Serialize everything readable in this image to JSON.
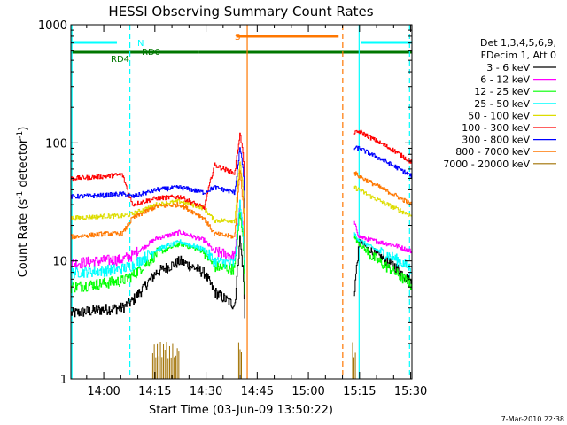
{
  "chart_data": {
    "type": "line",
    "title": "HESSI Observing Summary Count Rates",
    "xlabel": "Start Time (03-Jun-09 13:50:22)",
    "ylabel": "Count Rate (s",
    "ylabel_sup1": "-1",
    "ylabel_mid": " detector",
    "ylabel_sup2": "-1",
    "ylabel_end": ")",
    "y_scale": "log",
    "ylim": [
      1,
      1000
    ],
    "xlim_minutes": [
      0,
      100
    ],
    "x_ticks": [
      {
        "t": 9.63,
        "label": "14:00"
      },
      {
        "t": 24.63,
        "label": "14:15"
      },
      {
        "t": 39.63,
        "label": "14:30"
      },
      {
        "t": 54.63,
        "label": "14:45"
      },
      {
        "t": 69.63,
        "label": "15:00"
      },
      {
        "t": 84.63,
        "label": "15:15"
      },
      {
        "t": 99.63,
        "label": "15:30"
      }
    ],
    "y_ticks": [
      {
        "v": 1,
        "label": "1"
      },
      {
        "v": 10,
        "label": "10"
      },
      {
        "v": 100,
        "label": "100"
      },
      {
        "v": 1000,
        "label": "1000"
      }
    ],
    "legend_header": [
      "Det 1,3,4,5,6,9,",
      "FDecim 1, Att 0"
    ],
    "legend_position": "right",
    "timestamp": "7-Mar-2010 22:38",
    "flags": [
      {
        "label": "N",
        "color": "#00ffff",
        "segments": [
          [
            0,
            13.5
          ],
          [
            85,
            100
          ]
        ]
      },
      {
        "label": "RD0",
        "color": "#007700",
        "segments": [
          [
            14.5,
            37.5
          ],
          [
            37.5,
            100
          ]
        ]
      },
      {
        "label": "RD4",
        "color": "#007700",
        "segments": [
          [
            0,
            15.5
          ]
        ]
      },
      {
        "label": "S",
        "color": "#ff7700",
        "segments": [
          [
            48.5,
            78.5
          ]
        ]
      }
    ],
    "vertical_markers": [
      {
        "t": 0.3,
        "color": "#00ffff",
        "style": "solid"
      },
      {
        "t": 17.3,
        "color": "#00ffff",
        "style": "dashed"
      },
      {
        "t": 51.7,
        "color": "#ff7700",
        "style": "solid"
      },
      {
        "t": 79.7,
        "color": "#ff7700",
        "style": "dashed"
      },
      {
        "t": 84.5,
        "color": "#00ffff",
        "style": "solid"
      },
      {
        "t": 99.3,
        "color": "#00ffff",
        "style": "dashed"
      }
    ],
    "series": [
      {
        "name": "3 - 6 keV",
        "color": "#000000",
        "points": [
          [
            0,
            3.6
          ],
          [
            10,
            3.9
          ],
          [
            15,
            4.0
          ],
          [
            18,
            4.6
          ],
          [
            25,
            8.0
          ],
          [
            32,
            10.0
          ],
          [
            39,
            8.0
          ],
          [
            42,
            5.5
          ],
          [
            48,
            4.2
          ],
          [
            49.5,
            16
          ],
          [
            50.5,
            8
          ],
          [
            51,
            2.8
          ],
          [
            83,
            5.3
          ],
          [
            84.5,
            14.8
          ],
          [
            88,
            12.0
          ],
          [
            95,
            9.0
          ],
          [
            100,
            6.4
          ]
        ]
      },
      {
        "name": "6 - 12 keV",
        "color": "#ff00ff",
        "points": [
          [
            0,
            9.5
          ],
          [
            10,
            10.1
          ],
          [
            15,
            10.3
          ],
          [
            18,
            11.2
          ],
          [
            25,
            15.5
          ],
          [
            32,
            17.5
          ],
          [
            39,
            15.0
          ],
          [
            42,
            12.0
          ],
          [
            48,
            11.0
          ],
          [
            49.5,
            30
          ],
          [
            50.5,
            18
          ],
          [
            51,
            7
          ],
          [
            83,
            21
          ],
          [
            84.5,
            16
          ],
          [
            88,
            15.0
          ],
          [
            95,
            13.5
          ],
          [
            100,
            12.0
          ]
        ]
      },
      {
        "name": "12 - 25 keV",
        "color": "#00ff00",
        "points": [
          [
            0,
            6.0
          ],
          [
            10,
            6.5
          ],
          [
            15,
            6.8
          ],
          [
            18,
            7.5
          ],
          [
            25,
            11.5
          ],
          [
            32,
            14.0
          ],
          [
            39,
            12.0
          ],
          [
            42,
            9.0
          ],
          [
            48,
            8.5
          ],
          [
            49.5,
            26
          ],
          [
            50.5,
            15
          ],
          [
            51,
            5
          ],
          [
            83,
            16
          ],
          [
            84.5,
            14
          ],
          [
            88,
            11.0
          ],
          [
            95,
            8.0
          ],
          [
            100,
            6.2
          ]
        ]
      },
      {
        "name": "25 - 50 keV",
        "color": "#00ffff",
        "points": [
          [
            0,
            8.0
          ],
          [
            10,
            8.3
          ],
          [
            15,
            8.6
          ],
          [
            18,
            9.2
          ],
          [
            25,
            12.5
          ],
          [
            32,
            14.5
          ],
          [
            39,
            12.5
          ],
          [
            42,
            10.0
          ],
          [
            48,
            9.5
          ],
          [
            49.5,
            32
          ],
          [
            50.5,
            17
          ],
          [
            51,
            7
          ],
          [
            83,
            17
          ],
          [
            84.5,
            15
          ],
          [
            88,
            13.0
          ],
          [
            95,
            10.5
          ],
          [
            100,
            8.5
          ]
        ]
      },
      {
        "name": "50 - 100 keV",
        "color": "#dddd00",
        "points": [
          [
            0,
            23
          ],
          [
            10,
            24
          ],
          [
            15,
            24
          ],
          [
            18,
            25
          ],
          [
            25,
            30
          ],
          [
            32,
            32
          ],
          [
            39,
            28
          ],
          [
            42,
            22
          ],
          [
            48,
            22
          ],
          [
            49.5,
            70
          ],
          [
            50.5,
            40
          ],
          [
            51,
            12
          ],
          [
            83,
            42
          ],
          [
            84.5,
            40
          ],
          [
            88,
            35
          ],
          [
            95,
            28
          ],
          [
            100,
            24
          ]
        ]
      },
      {
        "name": "100 - 300 keV",
        "color": "#ff0000",
        "points": [
          [
            0,
            50
          ],
          [
            10,
            52
          ],
          [
            15,
            54
          ],
          [
            18,
            30
          ],
          [
            25,
            34
          ],
          [
            32,
            35
          ],
          [
            39,
            28
          ],
          [
            42,
            65
          ],
          [
            48,
            55
          ],
          [
            49.5,
            120
          ],
          [
            50.5,
            80
          ],
          [
            51,
            30
          ],
          [
            83,
            120
          ],
          [
            84.5,
            125
          ],
          [
            88,
            110
          ],
          [
            95,
            85
          ],
          [
            100,
            68
          ]
        ]
      },
      {
        "name": "300 - 800 keV",
        "color": "#0000ff",
        "points": [
          [
            0,
            35
          ],
          [
            10,
            36
          ],
          [
            15,
            37
          ],
          [
            18,
            35
          ],
          [
            25,
            40
          ],
          [
            32,
            42
          ],
          [
            39,
            38
          ],
          [
            42,
            42
          ],
          [
            48,
            38
          ],
          [
            49.5,
            90
          ],
          [
            50.5,
            60
          ],
          [
            51,
            25
          ],
          [
            83,
            90
          ],
          [
            84.5,
            90
          ],
          [
            88,
            80
          ],
          [
            95,
            63
          ],
          [
            100,
            52
          ]
        ]
      },
      {
        "name": "800 - 7000 keV",
        "color": "#ff7700",
        "points": [
          [
            0,
            16
          ],
          [
            10,
            17
          ],
          [
            15,
            17
          ],
          [
            18,
            23
          ],
          [
            25,
            29
          ],
          [
            32,
            30
          ],
          [
            39,
            23
          ],
          [
            42,
            17
          ],
          [
            48,
            16
          ],
          [
            49.5,
            60
          ],
          [
            50.5,
            30
          ],
          [
            51,
            10
          ],
          [
            83,
            56
          ],
          [
            84.5,
            52
          ],
          [
            88,
            46
          ],
          [
            95,
            36
          ],
          [
            100,
            30
          ]
        ]
      },
      {
        "name": "7000 - 20000 keV",
        "color": "#a07000",
        "points": []
      }
    ]
  }
}
